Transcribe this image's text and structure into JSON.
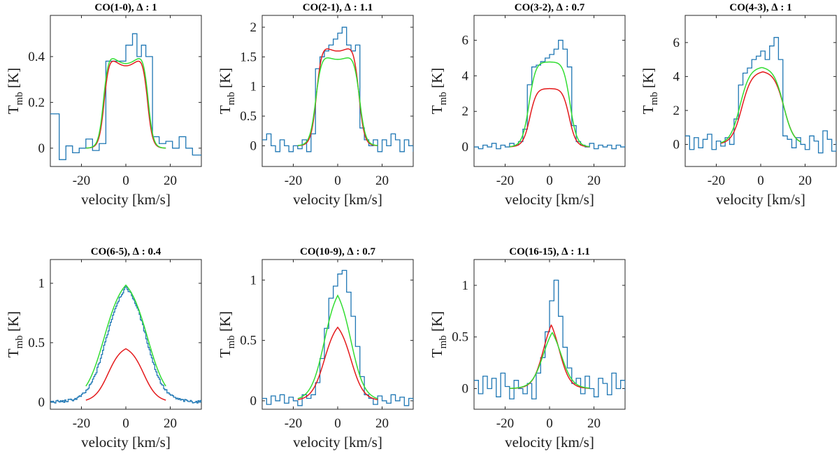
{
  "chart_data": [
    {
      "type": "line",
      "title": "CO(1-0), ∆ : 1",
      "xlabel": "velocity [km/s]",
      "ylabel": "T",
      "ylabel_sub": "mb",
      "ylabel_unit": " [K]",
      "xlim": [
        -34,
        34
      ],
      "ylim": [
        -0.08,
        0.58
      ],
      "xticks": [
        -20,
        0,
        20
      ],
      "yticks": [
        0,
        0.2,
        0.4
      ],
      "series": [
        {
          "kind": "observed",
          "color": "#1f77b4",
          "step": true,
          "x": [
            -34,
            -30,
            -27,
            -24,
            -21,
            -18,
            -15,
            -12,
            -9,
            -6,
            -3,
            0,
            3,
            5,
            7,
            9,
            12,
            15,
            18,
            21,
            24,
            27,
            30,
            34
          ],
          "y": [
            0.15,
            -0.05,
            0.01,
            -0.02,
            0.0,
            0.04,
            -0.01,
            0.02,
            0.38,
            0.38,
            0.38,
            0.45,
            0.5,
            0.4,
            0.45,
            0.4,
            0.05,
            0.02,
            0.03,
            0.0,
            0.05,
            0.0,
            -0.03,
            -0.03
          ]
        },
        {
          "kind": "model",
          "color": "#e41a1c",
          "w": 9.5,
          "s": 1.2,
          "peak": 0.46,
          "dip": 0.36
        },
        {
          "kind": "model",
          "color": "#33dd33",
          "w": 9.8,
          "s": 1.2,
          "peak": 0.47,
          "dip": 0.37
        }
      ]
    },
    {
      "type": "line",
      "title": "CO(2-1), ∆ : 1.1",
      "xlabel": "velocity [km/s]",
      "ylabel": "T",
      "ylabel_sub": "mb",
      "ylabel_unit": " [K]",
      "xlim": [
        -34,
        34
      ],
      "ylim": [
        -0.35,
        2.2
      ],
      "xticks": [
        -20,
        0,
        20
      ],
      "yticks": [
        0,
        0.5,
        1,
        1.5,
        2
      ],
      "series": [
        {
          "kind": "observed",
          "color": "#1f77b4",
          "step": true,
          "x": [
            -34,
            -32,
            -30,
            -28,
            -26,
            -24,
            -22,
            -20,
            -18,
            -16,
            -14,
            -12,
            -10,
            -8,
            -6,
            -4,
            -2,
            0,
            2,
            4,
            6,
            8,
            10,
            12,
            14,
            16,
            18,
            20,
            22,
            24,
            26,
            28,
            30,
            32,
            34
          ],
          "y": [
            0.1,
            0.2,
            0.0,
            -0.1,
            0.1,
            0.0,
            -0.1,
            0.0,
            -0.05,
            0.1,
            -0.1,
            0.2,
            1.3,
            1.5,
            1.6,
            1.7,
            1.8,
            1.9,
            2.0,
            1.7,
            1.6,
            1.7,
            0.3,
            0.1,
            0.0,
            0.1,
            -0.1,
            0.1,
            0.0,
            0.2,
            0.1,
            -0.1,
            0.1,
            0.0,
            -0.1
          ]
        },
        {
          "kind": "model",
          "color": "#e41a1c",
          "w": 9.3,
          "s": 1.3,
          "peak": 1.92,
          "dip": 1.6
        },
        {
          "kind": "model",
          "color": "#33dd33",
          "w": 9.6,
          "s": 1.4,
          "peak": 1.74,
          "dip": 1.46
        }
      ]
    },
    {
      "type": "line",
      "title": "CO(3-2), ∆ : 0.7",
      "xlabel": "velocity [km/s]",
      "ylabel": "T",
      "ylabel_sub": "mb",
      "ylabel_unit": " [K]",
      "xlim": [
        -34,
        34
      ],
      "ylim": [
        -1.1,
        7.4
      ],
      "xticks": [
        -20,
        0,
        20
      ],
      "yticks": [
        0,
        2,
        4,
        6
      ],
      "series": [
        {
          "kind": "observed",
          "color": "#1f77b4",
          "step": true,
          "x": [
            -34,
            -32,
            -30,
            -28,
            -26,
            -24,
            -22,
            -20,
            -18,
            -16,
            -14,
            -12,
            -10,
            -8,
            -6,
            -4,
            -2,
            0,
            2,
            4,
            6,
            8,
            10,
            12,
            14,
            16,
            18,
            20,
            22,
            24,
            26,
            28,
            30,
            32,
            34
          ],
          "y": [
            0.0,
            -0.1,
            0.1,
            0.0,
            0.2,
            -0.1,
            0.1,
            0.0,
            0.2,
            0.1,
            0.3,
            1.0,
            3.5,
            4.5,
            4.6,
            4.8,
            5.0,
            5.2,
            5.5,
            6.0,
            5.5,
            4.5,
            1.2,
            0.3,
            0.1,
            0.0,
            0.2,
            -0.1,
            0.1,
            0.0,
            0.1,
            -0.1,
            0.1,
            0.0,
            0.1
          ]
        },
        {
          "kind": "model",
          "color": "#e41a1c",
          "w": 8.6,
          "s": 1.6,
          "peak": 3.65,
          "dip": 3.3
        },
        {
          "kind": "model",
          "color": "#33dd33",
          "w": 9.0,
          "s": 1.6,
          "peak": 5.25,
          "dip": 4.8
        }
      ]
    },
    {
      "type": "line",
      "title": "CO(4-3), ∆ : 1",
      "xlabel": "velocity [km/s]",
      "ylabel": "T",
      "ylabel_sub": "mb",
      "ylabel_unit": " [K]",
      "xlim": [
        -34,
        34
      ],
      "ylim": [
        -1.3,
        7.6
      ],
      "xticks": [
        -20,
        0,
        20
      ],
      "yticks": [
        0,
        2,
        4,
        6
      ],
      "series": [
        {
          "kind": "observed",
          "color": "#1f77b4",
          "step": true,
          "x": [
            -34,
            -32,
            -30,
            -28,
            -26,
            -24,
            -22,
            -20,
            -18,
            -16,
            -14,
            -12,
            -10,
            -8,
            -6,
            -4,
            -2,
            0,
            2,
            4,
            6,
            8,
            10,
            12,
            14,
            16,
            18,
            20,
            22,
            24,
            26,
            28,
            30,
            32,
            34
          ],
          "y": [
            0.5,
            -0.3,
            0.4,
            -0.2,
            0.3,
            0.6,
            -0.3,
            0.2,
            -0.1,
            0.4,
            0.0,
            1.5,
            3.5,
            4.2,
            4.5,
            5.0,
            5.2,
            5.5,
            5.0,
            5.8,
            6.3,
            5.0,
            0.5,
            0.3,
            -0.2,
            0.4,
            0.0,
            -0.3,
            0.5,
            0.2,
            -0.5,
            0.8,
            0.3,
            -0.4,
            0.2
          ]
        },
        {
          "kind": "model",
          "color": "#e41a1c",
          "w": 9.3,
          "s": 2.3,
          "peak": 4.55,
          "dip": 4.35,
          "shift": 1.0
        },
        {
          "kind": "model",
          "color": "#33dd33",
          "w": 9.6,
          "s": 2.3,
          "peak": 4.8,
          "dip": 4.6,
          "shift": 0.5
        }
      ]
    },
    {
      "type": "line",
      "title": "CO(6-5), ∆ : 0.4",
      "xlabel": "velocity [km/s]",
      "ylabel": "T",
      "ylabel_sub": "mb",
      "ylabel_unit": " [K]",
      "xlim": [
        -34,
        34
      ],
      "ylim": [
        -0.06,
        1.2
      ],
      "xticks": [
        -20,
        0,
        20
      ],
      "yticks": [
        0,
        0.5,
        1
      ],
      "series": [
        {
          "kind": "observed",
          "color": "#1f77b4",
          "step": false,
          "smooth": true,
          "w": 9.2,
          "s": 3.8,
          "peak": 1.05,
          "noise": 0.012
        },
        {
          "kind": "model",
          "color": "#e41a1c",
          "w": 8.0,
          "s": 3.0,
          "peak": 0.48,
          "dip": 0.48
        },
        {
          "kind": "model",
          "color": "#33dd33",
          "w": 9.8,
          "s": 4.2,
          "peak": 1.08,
          "dip": 1.08
        }
      ]
    },
    {
      "type": "line",
      "title": "CO(10-9), ∆ : 0.7",
      "xlabel": "velocity [km/s]",
      "ylabel": "T",
      "ylabel_sub": "mb",
      "ylabel_unit": " [K]",
      "xlim": [
        -34,
        34
      ],
      "ylim": [
        -0.07,
        1.17
      ],
      "xticks": [
        -20,
        0,
        20
      ],
      "yticks": [
        0,
        0.5,
        1
      ],
      "series": [
        {
          "kind": "observed",
          "color": "#1f77b4",
          "step": true,
          "x": [
            -34,
            -32,
            -30,
            -28,
            -26,
            -24,
            -22,
            -20,
            -18,
            -16,
            -14,
            -12,
            -10,
            -8,
            -6,
            -4,
            -2,
            0,
            2,
            4,
            6,
            8,
            10,
            12,
            14,
            16,
            18,
            20,
            22,
            24,
            26,
            28,
            30,
            32,
            34
          ],
          "y": [
            0.02,
            -0.03,
            0.04,
            0.0,
            0.05,
            -0.02,
            0.03,
            0.0,
            -0.04,
            0.05,
            0.02,
            0.05,
            0.15,
            0.35,
            0.6,
            0.85,
            0.95,
            1.05,
            1.08,
            0.9,
            0.7,
            0.45,
            0.2,
            0.05,
            0.02,
            -0.03,
            0.04,
            0.0,
            -0.02,
            0.05,
            0.0,
            0.03,
            -0.04,
            0.02,
            0.0
          ]
        },
        {
          "kind": "model",
          "color": "#e41a1c",
          "w": 6.0,
          "s": 2.8,
          "peak": 0.68,
          "dip": 0.68
        },
        {
          "kind": "model",
          "color": "#33dd33",
          "w": 6.0,
          "s": 3.0,
          "peak": 0.99,
          "dip": 0.99
        }
      ]
    },
    {
      "type": "line",
      "title": "CO(16-15), ∆ : 1.1",
      "xlabel": "velocity [km/s]",
      "ylabel": "T",
      "ylabel_sub": "mb",
      "ylabel_unit": " [K]",
      "xlim": [
        -34,
        34
      ],
      "ylim": [
        -0.2,
        1.25
      ],
      "xticks": [
        -20,
        0,
        20
      ],
      "yticks": [
        0,
        0.5,
        1
      ],
      "series": [
        {
          "kind": "observed",
          "color": "#1f77b4",
          "step": true,
          "x": [
            -34,
            -32,
            -30,
            -28,
            -26,
            -24,
            -22,
            -20,
            -18,
            -16,
            -14,
            -12,
            -10,
            -8,
            -6,
            -4,
            -2,
            0,
            2,
            4,
            6,
            8,
            10,
            12,
            14,
            16,
            18,
            20,
            22,
            24,
            26,
            28,
            30,
            32,
            34
          ],
          "y": [
            0.08,
            -0.05,
            0.12,
            0.0,
            0.1,
            -0.08,
            0.15,
            0.02,
            -0.1,
            0.08,
            0.0,
            -0.05,
            0.05,
            -0.1,
            0.15,
            0.3,
            0.55,
            0.85,
            1.05,
            0.7,
            0.4,
            0.2,
            0.05,
            0.1,
            -0.05,
            0.12,
            0.0,
            -0.08,
            0.1,
            0.05,
            -0.06,
            0.15,
            0.0,
            0.08,
            -0.02
          ]
        },
        {
          "kind": "model",
          "color": "#e41a1c",
          "w": 3.5,
          "s": 2.4,
          "peak": 0.76,
          "dip": 0.76,
          "shift": 0.8
        },
        {
          "kind": "model",
          "color": "#33dd33",
          "w": 4.0,
          "s": 2.6,
          "peak": 0.66,
          "dip": 0.66,
          "shift": 1.2
        }
      ]
    }
  ]
}
